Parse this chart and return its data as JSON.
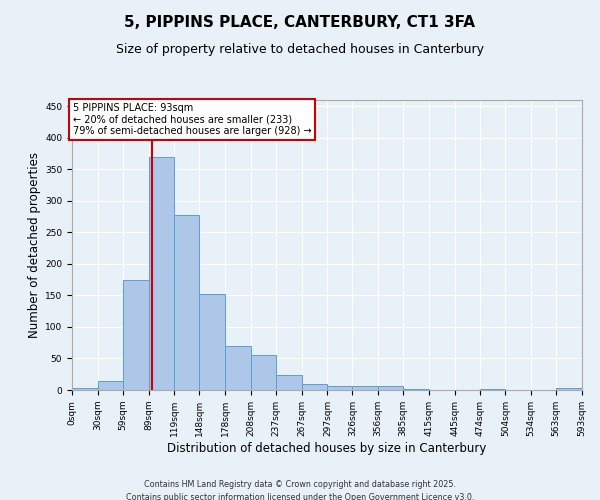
{
  "title": "5, PIPPINS PLACE, CANTERBURY, CT1 3FA",
  "subtitle": "Size of property relative to detached houses in Canterbury",
  "xlabel": "Distribution of detached houses by size in Canterbury",
  "ylabel": "Number of detached properties",
  "bin_edges": [
    0,
    30,
    59,
    89,
    119,
    148,
    178,
    208,
    237,
    267,
    297,
    326,
    356,
    385,
    415,
    445,
    474,
    504,
    534,
    563,
    593
  ],
  "bar_heights": [
    3,
    15,
    175,
    370,
    278,
    152,
    70,
    55,
    24,
    9,
    7,
    6,
    7,
    1,
    0,
    0,
    1,
    0,
    0,
    3
  ],
  "bar_color": "#aec6e8",
  "bar_edge_color": "#5a9fd4",
  "property_size": 93,
  "vline_color": "#cc0000",
  "annotation_line1": "5 PIPPINS PLACE: 93sqm",
  "annotation_line2": "← 20% of detached houses are smaller (233)",
  "annotation_line3": "79% of semi-detached houses are larger (928) →",
  "annotation_box_color": "#ffffff",
  "annotation_box_edge": "#cc0000",
  "ylim": [
    0,
    460
  ],
  "yticks": [
    0,
    50,
    100,
    150,
    200,
    250,
    300,
    350,
    400,
    450
  ],
  "bg_color": "#e8f0f8",
  "footer_line1": "Contains HM Land Registry data © Crown copyright and database right 2025.",
  "footer_line2": "Contains public sector information licensed under the Open Government Licence v3.0.",
  "title_fontsize": 11,
  "subtitle_fontsize": 9,
  "tick_label_fontsize": 6.5,
  "axis_label_fontsize": 8.5,
  "ylabel_fontsize": 8.5
}
